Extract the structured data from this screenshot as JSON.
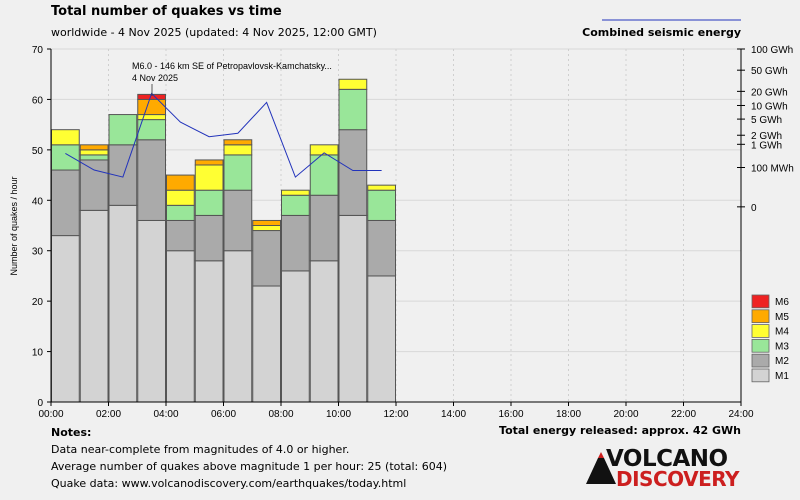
{
  "header": {
    "title": "Total number of quakes vs time",
    "subtitle": "worldwide -  4 Nov 2025 (updated: 4 Nov 2025, 12:00 GMT)",
    "energy_legend_label": "Combined seismic energy"
  },
  "annotation": {
    "line1": "M6.0 - 146 km SE of Petropavlovsk-Kamchatsky...",
    "line2": "4 Nov 2025"
  },
  "notes": {
    "heading": "Notes:",
    "line1": "Data near-complete from magnitudes of 4.0 or higher.",
    "line2": "Average number of quakes above magnitude 1 per hour: 25 (total: 604)",
    "line3": "Quake data: www.volcanodiscovery.com/earthquakes/today.html"
  },
  "total_energy": "Total energy released: approx. 42 GWh",
  "logo": {
    "top": "VOLCANO",
    "bottom": "DISCOVERY"
  },
  "colors": {
    "M1": "#d3d3d3",
    "M2": "#aaaaaa",
    "M3": "#99e699",
    "M4": "#ffff33",
    "M5": "#ffaa00",
    "M6": "#ee2222",
    "energy_line": "#2233bb",
    "bar_outline": "#555555",
    "background": "#f0f0f0"
  },
  "chart_data": {
    "type": "bar",
    "stacked": true,
    "ylabel": "Number of quakes / hour",
    "ylim": [
      0,
      70
    ],
    "yticks": [
      "0",
      "10",
      "20",
      "30",
      "40",
      "50",
      "60",
      "70"
    ],
    "xlim": [
      0,
      24
    ],
    "xtick_labels": [
      "00:00",
      "02:00",
      "04:00",
      "06:00",
      "08:00",
      "10:00",
      "12:00",
      "14:00",
      "16:00",
      "18:00",
      "20:00",
      "22:00",
      "24:00"
    ],
    "grid": true,
    "legend_position": "right",
    "bin_starts_hour": [
      0,
      1,
      2,
      3,
      4,
      5,
      6,
      7,
      8,
      9,
      10,
      11
    ],
    "series": [
      {
        "name": "M1",
        "values": [
          33,
          38,
          39,
          36,
          30,
          28,
          30,
          23,
          26,
          28,
          37,
          25
        ]
      },
      {
        "name": "M2",
        "values": [
          13,
          10,
          12,
          16,
          6,
          9,
          12,
          11,
          11,
          13,
          17,
          11
        ]
      },
      {
        "name": "M3",
        "values": [
          5,
          1,
          6,
          4,
          3,
          5,
          7,
          0,
          4,
          8,
          8,
          6
        ]
      },
      {
        "name": "M4",
        "values": [
          3,
          1,
          0,
          1,
          3,
          5,
          2,
          1,
          1,
          2,
          2,
          1
        ]
      },
      {
        "name": "M5",
        "values": [
          0,
          1,
          0,
          3,
          3,
          1,
          1,
          1,
          0,
          0,
          0,
          0
        ]
      },
      {
        "name": "M6",
        "values": [
          0,
          0,
          0,
          1,
          0,
          0,
          0,
          0,
          0,
          0,
          0,
          0
        ]
      }
    ],
    "energy_axis": {
      "label": "Combined seismic energy",
      "ticks": [
        "100 GWh",
        "50 GWh",
        "20 GWh",
        "10 GWh",
        "5 GWh",
        "2 GWh",
        "1 GWh",
        "100 MWh",
        "0"
      ],
      "tick_values_left_scale": [
        70,
        65.8,
        61.6,
        58.8,
        56.1,
        52.9,
        51.1,
        46.5,
        38.7
      ]
    },
    "energy_line": {
      "x_hours": [
        0.5,
        1.5,
        2.5,
        3.5,
        4.5,
        5.5,
        6.5,
        7.5,
        8.5,
        9.5,
        10.5,
        11.5
      ],
      "y_left_scale": [
        49.3,
        46.0,
        44.6,
        61.2,
        55.5,
        52.6,
        53.3,
        59.4,
        44.6,
        49.4,
        45.9,
        45.9
      ]
    },
    "legend": [
      "M6",
      "M5",
      "M4",
      "M3",
      "M2",
      "M1"
    ]
  }
}
